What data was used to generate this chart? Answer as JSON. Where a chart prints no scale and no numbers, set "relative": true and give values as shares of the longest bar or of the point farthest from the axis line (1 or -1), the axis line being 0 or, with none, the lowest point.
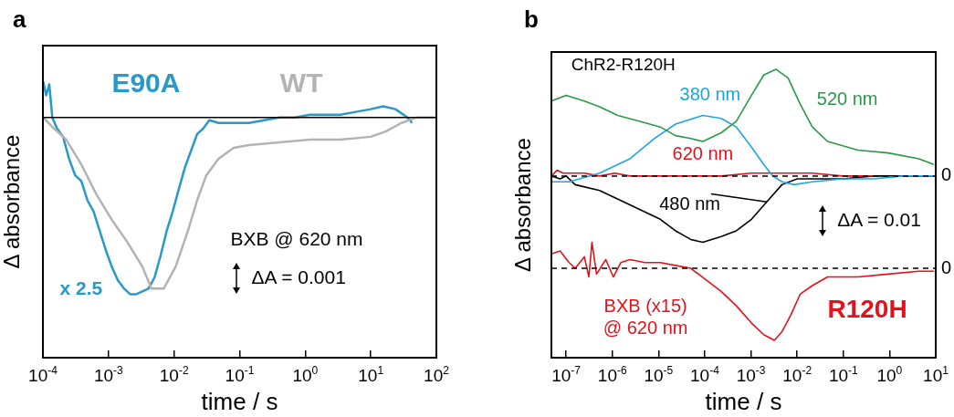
{
  "chart_data": [
    {
      "type": "line",
      "title": "a",
      "xlabel": "time / s",
      "ylabel": "Δ absorbance",
      "relative": true,
      "log": "x",
      "legend": false,
      "marker": "none",
      "line_style": "solid",
      "xlim": [
        0.0001,
        100
      ],
      "xticks": [
        {
          "value": 0.0001,
          "label": "10$^{-4}$"
        },
        {
          "value": 0.001,
          "label": "10$^{-3}$"
        },
        {
          "value": 0.01,
          "label": "10$^{-2}$"
        },
        {
          "value": 0.1,
          "label": "10$^{-1}$"
        },
        {
          "value": 1,
          "label": "10$^{0}$"
        },
        {
          "value": 10,
          "label": "10$^{1}$"
        },
        {
          "value": 100,
          "label": "10$^{2}$"
        }
      ],
      "ref_lines": [
        {
          "axis": "y",
          "value": 0.87,
          "color": "#000000"
        }
      ],
      "annotations": [
        "BXB @ 620 nm",
        "ΔA = 0.001",
        "x 2.5"
      ],
      "series": [
        {
          "name": "WT",
          "color": "#b3b3b3",
          "x": [
            0.000101,
            0.000147,
            0.000226,
            0.000385,
            0.000658,
            0.00112,
            0.00192,
            0.00328,
            0.00452,
            0.00694,
            0.0106,
            0.0163,
            0.0225,
            0.031,
            0.0476,
            0.0813,
            0.139,
            0.405,
            1.18,
            3.44,
            10,
            17.2,
            29.3,
            50,
            95
          ],
          "values": [
            0.87,
            0.83,
            0.79,
            0.7,
            0.59,
            0.5,
            0.42,
            0.33,
            0.25,
            0.25,
            0.33,
            0.46,
            0.57,
            0.66,
            0.72,
            0.76,
            0.77,
            0.78,
            0.79,
            0.79,
            0.8,
            0.82,
            0.85,
            0.87,
            0.87
          ]
        },
        {
          "name": "E90A",
          "color": "#2899c8",
          "x": [
            0.000101,
            0.000112,
            0.000125,
            0.000139,
            0.000164,
            0.000203,
            0.000251,
            0.000311,
            0.000385,
            0.000477,
            0.000592,
            0.000733,
            0.000908,
            0.00112,
            0.00139,
            0.00173,
            0.00214,
            0.00265,
            0.00328,
            0.00406,
            0.00503,
            0.00624,
            0.00773,
            0.00955,
            0.0118,
            0.0147,
            0.0182,
            0.0225,
            0.0279,
            0.0345,
            0.0476,
            0.0813,
            0.139,
            0.237,
            0.405,
            0.692,
            1.18,
            2.02,
            3.44,
            5.89,
            10,
            15.4,
            23.7,
            36.3,
            42.7
          ],
          "values": [
            1.0,
            0.95,
            0.99,
            0.87,
            0.83,
            0.8,
            0.72,
            0.66,
            0.64,
            0.57,
            0.53,
            0.46,
            0.39,
            0.33,
            0.28,
            0.25,
            0.23,
            0.23,
            0.24,
            0.25,
            0.29,
            0.37,
            0.46,
            0.53,
            0.61,
            0.69,
            0.75,
            0.81,
            0.83,
            0.86,
            0.85,
            0.85,
            0.85,
            0.86,
            0.87,
            0.87,
            0.88,
            0.88,
            0.88,
            0.89,
            0.9,
            0.91,
            0.9,
            0.87,
            0.85
          ]
        }
      ]
    },
    {
      "type": "line",
      "title": "b",
      "xlabel": "time / s",
      "ylabel": "Δ absorbance",
      "relative": true,
      "log": "x",
      "legend": false,
      "marker": "none",
      "line_style": "solid",
      "xlim": [
        4.8e-08,
        10
      ],
      "xticks": [
        {
          "value": 1e-07,
          "label": "10$^{-7}$"
        },
        {
          "value": 1e-06,
          "label": "10$^{-6}$"
        },
        {
          "value": 1e-05,
          "label": "10$^{-5}$"
        },
        {
          "value": 0.0001,
          "label": "10$^{-4}$"
        },
        {
          "value": 0.001,
          "label": "10$^{-3}$"
        },
        {
          "value": 0.01,
          "label": "10$^{-2}$"
        },
        {
          "value": 0.1,
          "label": "10$^{-1}$"
        },
        {
          "value": 1,
          "label": "10$^{0}$"
        },
        {
          "value": 10,
          "label": "10$^{1}$"
        }
      ],
      "ref_lines": [
        {
          "axis": "y",
          "value": 0.63,
          "color": "#000000",
          "line_style": "dashed"
        },
        {
          "axis": "y",
          "value": 0.31,
          "color": "#000000",
          "line_style": "dashed"
        }
      ],
      "annotations": [
        "ChR2-R120H",
        "ΔA = 0.01",
        "R120H",
        "0",
        "0"
      ],
      "series": [
        {
          "name": "520 nm",
          "color": "#2a9a48",
          "x": [
            4.8e-08,
            1e-07,
            2.48e-07,
            5.3e-07,
            1.31e-06,
            3.79e-06,
            1.09e-05,
            2.33e-05,
            4.98e-05,
            9.1e-05,
            0.000227,
            0.000483,
            0.00103,
            0.00189,
            0.00346,
            0.00635,
            0.0116,
            0.0213,
            0.0455,
            0.207,
            0.94,
            4.28,
            9.1
          ],
          "values": [
            0.89,
            0.91,
            0.89,
            0.87,
            0.84,
            0.82,
            0.8,
            0.77,
            0.76,
            0.75,
            0.78,
            0.82,
            0.91,
            0.98,
            1.0,
            0.97,
            0.88,
            0.8,
            0.75,
            0.72,
            0.71,
            0.69,
            0.67
          ]
        },
        {
          "name": "380 nm",
          "color": "#1ea5e6",
          "x": [
            4.8e-08,
            1.16e-07,
            5.3e-07,
            2.41e-06,
            8.1e-06,
            2.33e-05,
            9.1e-05,
            0.000227,
            0.000483,
            0.00103,
            0.00189,
            0.00298,
            0.00469,
            0.0086,
            0.0213,
            0.097,
            0.44,
            2.01,
            9.1
          ],
          "values": [
            0.61,
            0.61,
            0.64,
            0.69,
            0.76,
            0.81,
            0.84,
            0.83,
            0.8,
            0.73,
            0.67,
            0.63,
            0.61,
            0.6,
            0.61,
            0.62,
            0.62,
            0.63,
            0.63
          ]
        },
        {
          "name": "620 nm",
          "color": "#e3121b",
          "x": [
            4.8e-08,
            6.35e-08,
            8.6e-08,
            1.16e-07,
            2.48e-07,
            5.3e-07,
            1.13e-06,
            2.41e-06,
            1.09e-05,
            4.98e-05,
            0.000227,
            0.00103,
            0.00469,
            0.0213,
            0.097,
            0.44
          ],
          "values": [
            0.63,
            0.65,
            0.64,
            0.64,
            0.64,
            0.63,
            0.64,
            0.63,
            0.63,
            0.63,
            0.63,
            0.64,
            0.64,
            0.64,
            0.63,
            0.63
          ]
        },
        {
          "name": "480 nm",
          "color": "#000000",
          "x": [
            4.8e-08,
            7.4e-08,
            1e-07,
            1.57e-07,
            5.3e-07,
            2.41e-06,
            1.09e-05,
            2.33e-05,
            4.98e-05,
            9.1e-05,
            0.000227,
            0.000483,
            0.00103,
            0.0022,
            0.00469,
            0.01,
            0.0213,
            0.097,
            0.44,
            9.1
          ],
          "values": [
            0.63,
            0.62,
            0.63,
            0.6,
            0.58,
            0.53,
            0.48,
            0.44,
            0.41,
            0.4,
            0.42,
            0.44,
            0.48,
            0.54,
            0.6,
            0.62,
            0.62,
            0.62,
            0.63,
            0.63
          ]
        },
        {
          "name": "BXB (x15) @ 620 nm",
          "color": "#e3121b",
          "x": [
            4.8e-08,
            7.4e-08,
            1.16e-07,
            1.57e-07,
            2.48e-07,
            3.11e-07,
            3.62e-07,
            4.55e-07,
            7.2e-07,
            1.05e-06,
            1.53e-06,
            2.41e-06,
            5.1e-06,
            1.09e-05,
            2.33e-05,
            4.98e-05,
            0.000106,
            0.000227,
            0.000483,
            0.00103,
            0.00189,
            0.00321,
            0.00469,
            0.0074,
            0.0116,
            0.0213,
            0.0455,
            0.207,
            0.94,
            4.28,
            9.1
          ],
          "values": [
            0.36,
            0.37,
            0.33,
            0.31,
            0.35,
            0.28,
            0.4,
            0.29,
            0.34,
            0.28,
            0.33,
            0.34,
            0.33,
            0.33,
            0.32,
            0.31,
            0.27,
            0.23,
            0.18,
            0.12,
            0.08,
            0.06,
            0.09,
            0.15,
            0.22,
            0.25,
            0.28,
            0.28,
            0.29,
            0.3,
            0.3
          ]
        }
      ]
    }
  ]
}
